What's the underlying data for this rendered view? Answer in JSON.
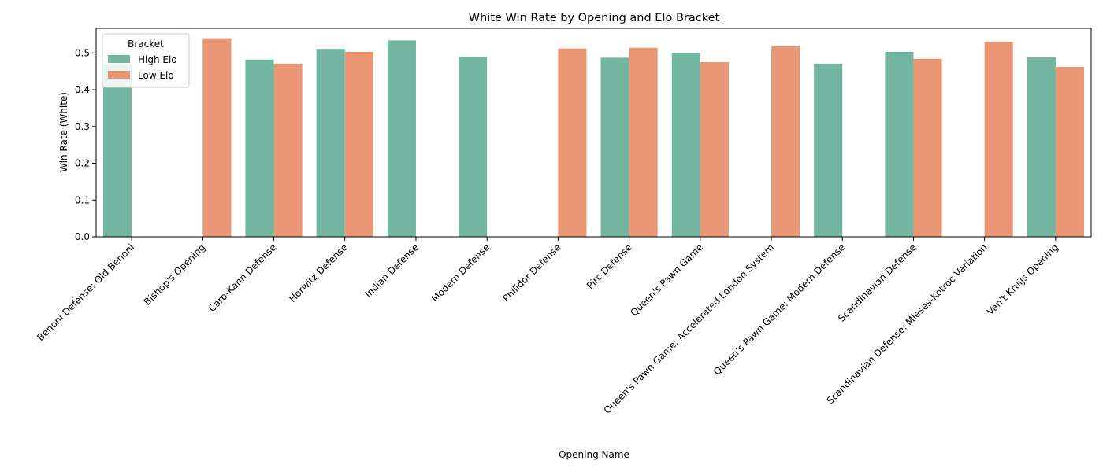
{
  "chart_data": {
    "type": "bar",
    "title": "White Win Rate by Opening and Elo Bracket",
    "xlabel": "Opening Name",
    "ylabel": "Win Rate (White)",
    "ylim": [
      0,
      0.567
    ],
    "yticks": [
      "0.0",
      "0.1",
      "0.2",
      "0.3",
      "0.4",
      "0.5"
    ],
    "grid": false,
    "legend": {
      "title": "Bracket",
      "placement": "top-left"
    },
    "categories": [
      "Benoni Defense: Old Benoni",
      "Bishop's Opening",
      "Caro-Kann Defense",
      "Horwitz Defense",
      "Indian Defense",
      "Modern Defense",
      "Philidor Defense",
      "Pirc Defense",
      "Queen's Pawn Game",
      "Queen's Pawn Game: Accelerated London System",
      "Queen's Pawn Game: Modern Defense",
      "Scandinavian Defense",
      "Scandinavian Defense: Mieses-Kotroc Variation",
      "Van't Kruijs Opening"
    ],
    "series": [
      {
        "name": "High Elo",
        "color": "#72b6a1",
        "values": [
          0.47,
          null,
          0.482,
          0.511,
          0.534,
          0.49,
          null,
          0.487,
          0.5,
          null,
          0.471,
          0.503,
          null,
          0.488
        ]
      },
      {
        "name": "Low Elo",
        "color": "#e99675",
        "values": [
          null,
          0.54,
          0.471,
          0.503,
          null,
          null,
          0.512,
          0.514,
          0.475,
          0.518,
          null,
          0.484,
          0.53,
          0.462
        ]
      }
    ]
  }
}
